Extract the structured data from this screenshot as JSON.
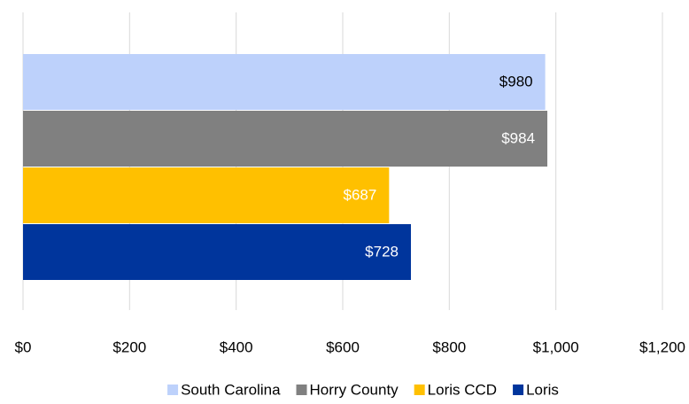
{
  "chart_data": {
    "type": "bar",
    "orientation": "horizontal",
    "series": [
      {
        "name": "South Carolina",
        "color": "#bdd1fb",
        "label_color": "#000000",
        "values": [
          980
        ],
        "value_labels": [
          "$980"
        ]
      },
      {
        "name": "Horry County",
        "color": "#808080",
        "label_color": "#ffffff",
        "values": [
          984
        ],
        "value_labels": [
          "$984"
        ]
      },
      {
        "name": "Loris CCD",
        "color": "#ffc000",
        "label_color": "#ffffff",
        "values": [
          687
        ],
        "value_labels": [
          "$687"
        ]
      },
      {
        "name": "Loris",
        "color": "#00359c",
        "label_color": "#ffffff",
        "values": [
          728
        ],
        "value_labels": [
          "$728"
        ]
      }
    ],
    "xlim": [
      0,
      1200
    ],
    "xticks": [
      {
        "value": 0,
        "label": "$0"
      },
      {
        "value": 200,
        "label": "$200"
      },
      {
        "value": 400,
        "label": "$400"
      },
      {
        "value": 600,
        "label": "$600"
      },
      {
        "value": 800,
        "label": "$800"
      },
      {
        "value": 1000,
        "label": "$1,000"
      },
      {
        "value": 1200,
        "label": "$1,200"
      }
    ],
    "grid": true,
    "legend": "bottom"
  }
}
